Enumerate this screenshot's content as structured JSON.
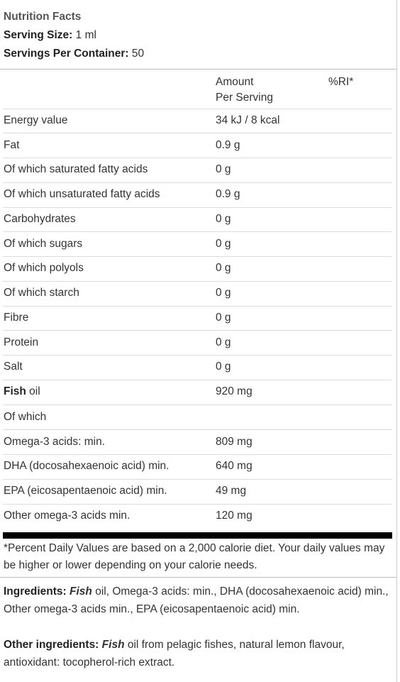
{
  "header": {
    "title": "Nutrition Facts",
    "serving_size_label": "Serving Size:",
    "serving_size_value": "1 ml",
    "servings_per_container_label": "Servings Per Container:",
    "servings_per_container_value": "50"
  },
  "columns": {
    "amount_line1": "Amount",
    "amount_line2": "Per Serving",
    "ri": "%RI*"
  },
  "rows": [
    {
      "name": "Energy value",
      "value": "34 kJ / 8 kcal"
    },
    {
      "name": "Fat",
      "value": "0.9 g"
    },
    {
      "name": "Of which saturated fatty acids",
      "value": "0 g"
    },
    {
      "name": "Of which unsaturated fatty acids",
      "value": "0.9 g"
    },
    {
      "name": "Carbohydrates",
      "value": "0 g"
    },
    {
      "name": "Of which sugars",
      "value": "0 g"
    },
    {
      "name": "Of which polyols",
      "value": "0 g"
    },
    {
      "name": "Of which starch",
      "value": "0 g"
    },
    {
      "name": "Fibre",
      "value": "0 g"
    },
    {
      "name": "Protein",
      "value": "0 g"
    },
    {
      "name": "Salt",
      "value": "0 g"
    },
    {
      "name_bold": "Fish",
      "name_rest": " oil",
      "value": "920 mg"
    },
    {
      "name": "Of which",
      "value": ""
    },
    {
      "name": "Omega-3 acids: min.",
      "value": "809 mg"
    },
    {
      "name": "DHA (docosahexaenoic acid) min.",
      "value": "640 mg"
    },
    {
      "name": "EPA (eicosapentaenoic acid) min.",
      "value": "49 mg"
    },
    {
      "name": "Other omega-3 acids min.",
      "value": "120 mg"
    }
  ],
  "footnote": "*Percent Daily Values are based on a 2,000 calorie diet. Your daily values may be higher or lower depending on your calorie needs.",
  "ingredients": {
    "label": "Ingredients:",
    "emph": "Fish",
    "text": " oil, Omega-3 acids: min., DHA (docosahexaenoic acid) min., Other omega-3 acids min., EPA (eicosapentaenoic acid) min."
  },
  "other_ingredients": {
    "label": "Other ingredients:",
    "emph": "Fish",
    "text": " oil from pelagic fishes, natural lemon flavour, antioxidant: tocopherol-rich extract."
  }
}
